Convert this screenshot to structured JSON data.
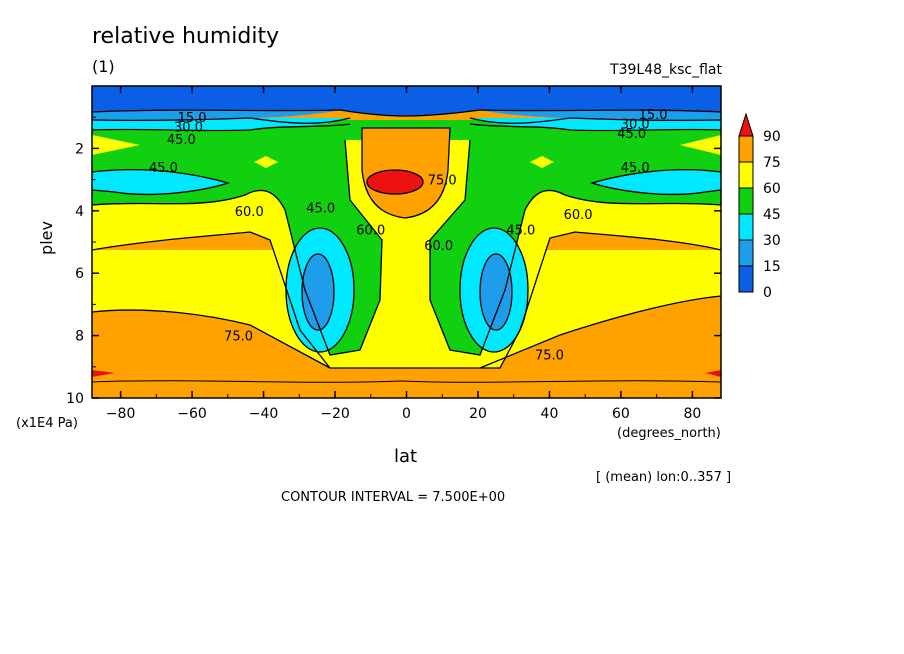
{
  "chart_data": {
    "type": "heatmap",
    "subtype": "filled-contour",
    "title": "relative humidity",
    "panel_label": "(1)",
    "run_label": "T39L48_ksc_flat",
    "xlabel": "lat",
    "x_units": "(degrees_north)",
    "ylabel": "plev",
    "y_units": "(x1E4 Pa)",
    "x_ticks": [
      -80,
      -60,
      -40,
      -20,
      0,
      20,
      40,
      60,
      80
    ],
    "y_ticks": [
      2,
      4,
      6,
      8,
      10
    ],
    "x_range": [
      -88,
      88
    ],
    "y_range": [
      0,
      10
    ],
    "y_inverted": true,
    "levels": [
      0,
      15,
      30,
      45,
      60,
      75,
      90
    ],
    "colorbar_labels": [
      "90",
      "75",
      "60",
      "45",
      "30",
      "15",
      "0"
    ],
    "colors": [
      "#0b5fe6",
      "#1e9eea",
      "#00e8ff",
      "#10d010",
      "#ffff00",
      "#ffa200",
      "#ee1111"
    ],
    "contour_labels": [
      {
        "text": "15.0",
        "lat": -60,
        "plev": 1.0
      },
      {
        "text": "30.0",
        "lat": -61,
        "plev": 1.3
      },
      {
        "text": "45.0",
        "lat": -63,
        "plev": 1.7
      },
      {
        "text": "45.0",
        "lat": -68,
        "plev": 2.6
      },
      {
        "text": "60.0",
        "lat": -44,
        "plev": 4.0
      },
      {
        "text": "45.0",
        "lat": -24,
        "plev": 3.9
      },
      {
        "text": "60.0",
        "lat": -10,
        "plev": 4.6
      },
      {
        "text": "75.0",
        "lat": 10,
        "plev": 3.0
      },
      {
        "text": "60.0",
        "lat": 9,
        "plev": 5.1
      },
      {
        "text": "45.0",
        "lat": 32,
        "plev": 4.6
      },
      {
        "text": "60.0",
        "lat": 48,
        "plev": 4.1
      },
      {
        "text": "45.0",
        "lat": 64,
        "plev": 2.6
      },
      {
        "text": "45.0",
        "lat": 63,
        "plev": 1.5
      },
      {
        "text": "30.0",
        "lat": 64,
        "plev": 1.2
      },
      {
        "text": "15.0",
        "lat": 69,
        "plev": 0.9
      },
      {
        "text": "75.0",
        "lat": -47,
        "plev": 8.0
      },
      {
        "text": "75.0",
        "lat": 40,
        "plev": 8.6
      }
    ],
    "mean_note": "[ (mean) lon:0..357 ]",
    "contour_interval": "CONTOUR INTERVAL = 7.500E+00"
  }
}
